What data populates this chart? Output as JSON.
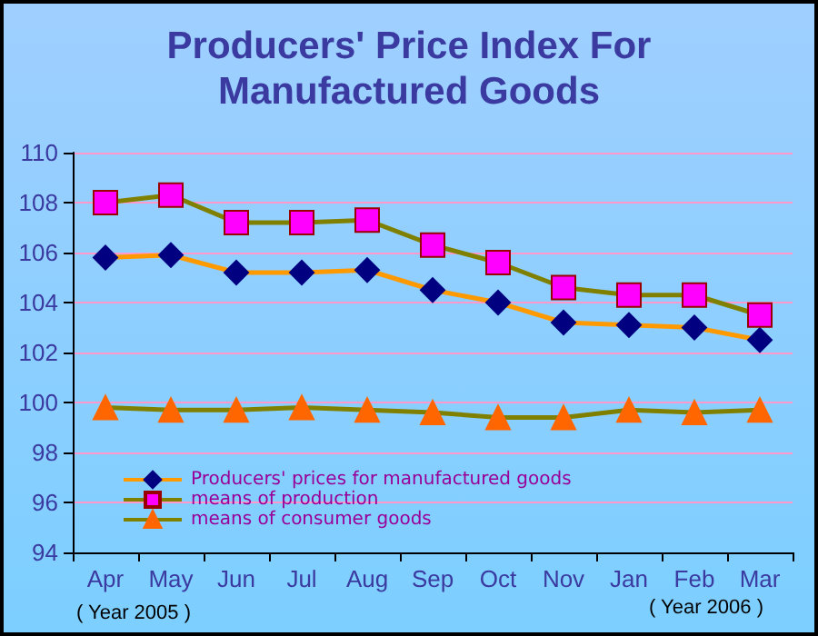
{
  "chart_data": {
    "type": "line",
    "title": "Producers' Price Index For\nManufactured Goods",
    "categories": [
      "Apr",
      "May",
      "Jun",
      "Jul",
      "Aug",
      "Sep",
      "Oct",
      "Nov",
      "Jan",
      "Feb",
      "Mar"
    ],
    "series": [
      {
        "name": "Producers' prices for manufactured goods",
        "color": "#000080",
        "marker": "diamond",
        "values": [
          105.8,
          105.9,
          105.2,
          105.2,
          105.3,
          104.5,
          104.0,
          103.2,
          103.1,
          103.0,
          102.5
        ]
      },
      {
        "name": "means of production",
        "color": "#ff00ff",
        "marker": "square",
        "values": [
          108.0,
          108.3,
          107.2,
          107.2,
          107.3,
          106.3,
          105.6,
          104.6,
          104.3,
          104.3,
          103.5
        ]
      },
      {
        "name": "means of consumer goods",
        "color": "#ff6600",
        "marker": "triangle",
        "values": [
          99.8,
          99.7,
          99.7,
          99.8,
          99.7,
          99.6,
          99.4,
          99.4,
          99.7,
          99.6,
          99.7
        ]
      }
    ],
    "ylim": [
      94,
      110
    ],
    "yticks": [
      94,
      96,
      98,
      100,
      102,
      104,
      106,
      108,
      110
    ],
    "grid": "y",
    "legend": "bottom left",
    "annotations": [
      "( Year 2005 )",
      "( Year 2006 )"
    ]
  }
}
